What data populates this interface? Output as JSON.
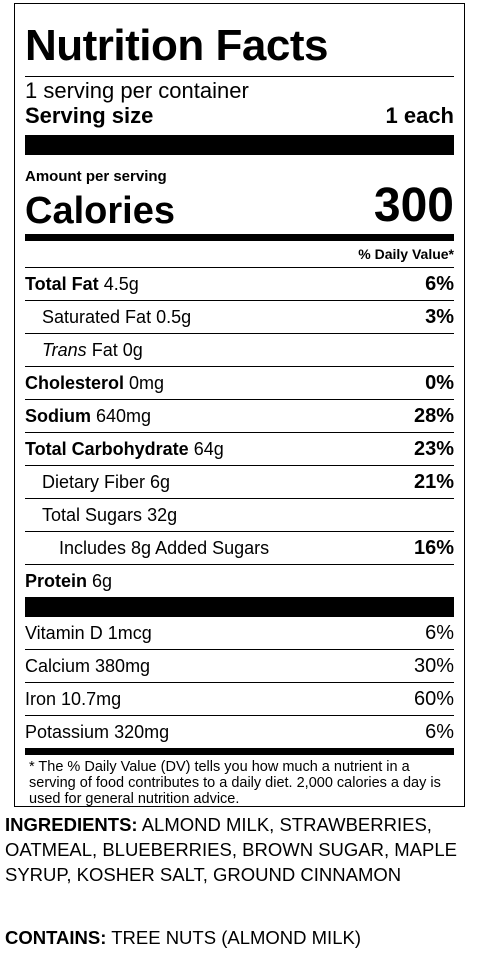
{
  "label": {
    "title": "Nutrition Facts",
    "servings_per_container": "1 serving per container",
    "serving_size_label": "Serving size",
    "serving_size_value": "1 each",
    "amount_per_serving": "Amount per serving",
    "calories_label": "Calories",
    "calories_value": "300",
    "daily_value_header": "% Daily Value*",
    "nutrients": {
      "total_fat": {
        "name": "Total Fat",
        "amount": "4.5g",
        "dv": "6%"
      },
      "saturated_fat": {
        "name": "Saturated Fat",
        "amount": "0.5g",
        "dv": "3%"
      },
      "trans_fat": {
        "name_italic": "Trans",
        "name_rest": "Fat",
        "amount": "0g"
      },
      "cholesterol": {
        "name": "Cholesterol",
        "amount": "0mg",
        "dv": "0%"
      },
      "sodium": {
        "name": "Sodium",
        "amount": "640mg",
        "dv": "28%"
      },
      "total_carbohydrate": {
        "name": "Total Carbohydrate",
        "amount": "64g",
        "dv": "23%"
      },
      "dietary_fiber": {
        "name": "Dietary Fiber",
        "amount": "6g",
        "dv": "21%"
      },
      "total_sugars": {
        "name": "Total Sugars",
        "amount": "32g"
      },
      "added_sugars": {
        "name": "Includes 8g Added Sugars",
        "dv": "16%"
      },
      "protein": {
        "name": "Protein",
        "amount": "6g"
      }
    },
    "vitamins": {
      "vitamin_d": {
        "name": "Vitamin D",
        "amount": "1mcg",
        "dv": "6%"
      },
      "calcium": {
        "name": "Calcium",
        "amount": "380mg",
        "dv": "30%"
      },
      "iron": {
        "name": "Iron",
        "amount": "10.7mg",
        "dv": "60%"
      },
      "potassium": {
        "name": "Potassium",
        "amount": "320mg",
        "dv": "6%"
      }
    },
    "footnote": "* The % Daily Value (DV) tells you how much a nutrient in a serving of food contributes to a daily diet. 2,000 calories a day is used for general nutrition advice."
  },
  "ingredients": {
    "heading": "INGREDIENTS:",
    "text": "ALMOND MILK, STRAWBERRIES, OATMEAL, BLUEBERRIES, BROWN SUGAR, MAPLE SYRUP, KOSHER SALT, GROUND CINNAMON"
  },
  "contains": {
    "heading": "CONTAINS:",
    "text": "TREE NUTS (ALMOND MILK)"
  }
}
